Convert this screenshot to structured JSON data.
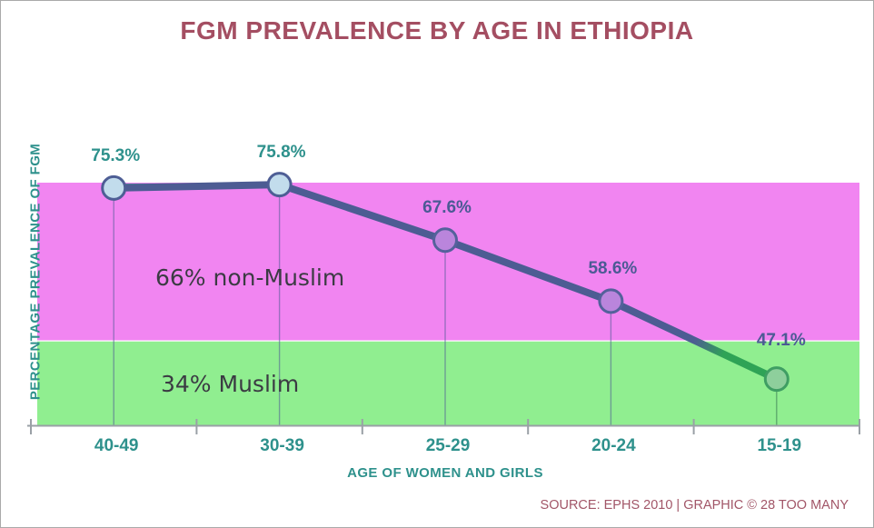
{
  "title": "FGM PREVALENCE BY AGE IN ETHIOPIA",
  "source": "SOURCE: EPHS 2010 | GRAPHIC © 28 TOO MANY",
  "chart_data": {
    "type": "line",
    "title": "FGM PREVALENCE BY AGE IN ETHIOPIA",
    "xlabel": "AGE OF WOMEN AND GIRLS",
    "ylabel": "PERCENTAGE PREVALENCE OF FGM",
    "categories": [
      "40-49",
      "30-39",
      "25-29",
      "20-24",
      "15-19"
    ],
    "values": [
      75.3,
      75.8,
      67.6,
      58.6,
      47.1
    ],
    "point_labels": [
      "75.3%",
      "75.8%",
      "67.6%",
      "58.6%",
      "47.1%"
    ],
    "point_label_colors": [
      "#2e918c",
      "#2e918c",
      "#4b5a94",
      "#4b5a94",
      "#4b5a94"
    ],
    "marker_fills": [
      "#c2dcec",
      "#c2dcec",
      "#ba85dc",
      "#ba85dc",
      "#8ecf9c"
    ],
    "marker_strokes": [
      "#4e5e95",
      "#4e5e95",
      "#54619b",
      "#54619b",
      "#3f9e63"
    ],
    "bands": [
      {
        "label": "66% non-Muslim",
        "share": 66,
        "color": "#f185f1"
      },
      {
        "label": "34% Muslim",
        "share": 34,
        "color": "#90ee90"
      }
    ],
    "y_axis_tick_labels_visible": false,
    "grid": false,
    "legend": false
  },
  "colors": {
    "title_text": "#a44e62",
    "teal_text": "#2e918c",
    "slate_text": "#4b5a94",
    "line": "#4d5c93",
    "line_green": "#2fa356",
    "line_teal_accent": "#3aa08f",
    "axis": "#9aa0a6",
    "drop_line": "rgba(80,92,150,0.55)",
    "drop_line_green": "rgba(62,125,86,0.6)",
    "band_boundary": "rgba(255,255,255,0.85)",
    "band_label_text": "#3b3b43",
    "source_text": "#a25668"
  }
}
